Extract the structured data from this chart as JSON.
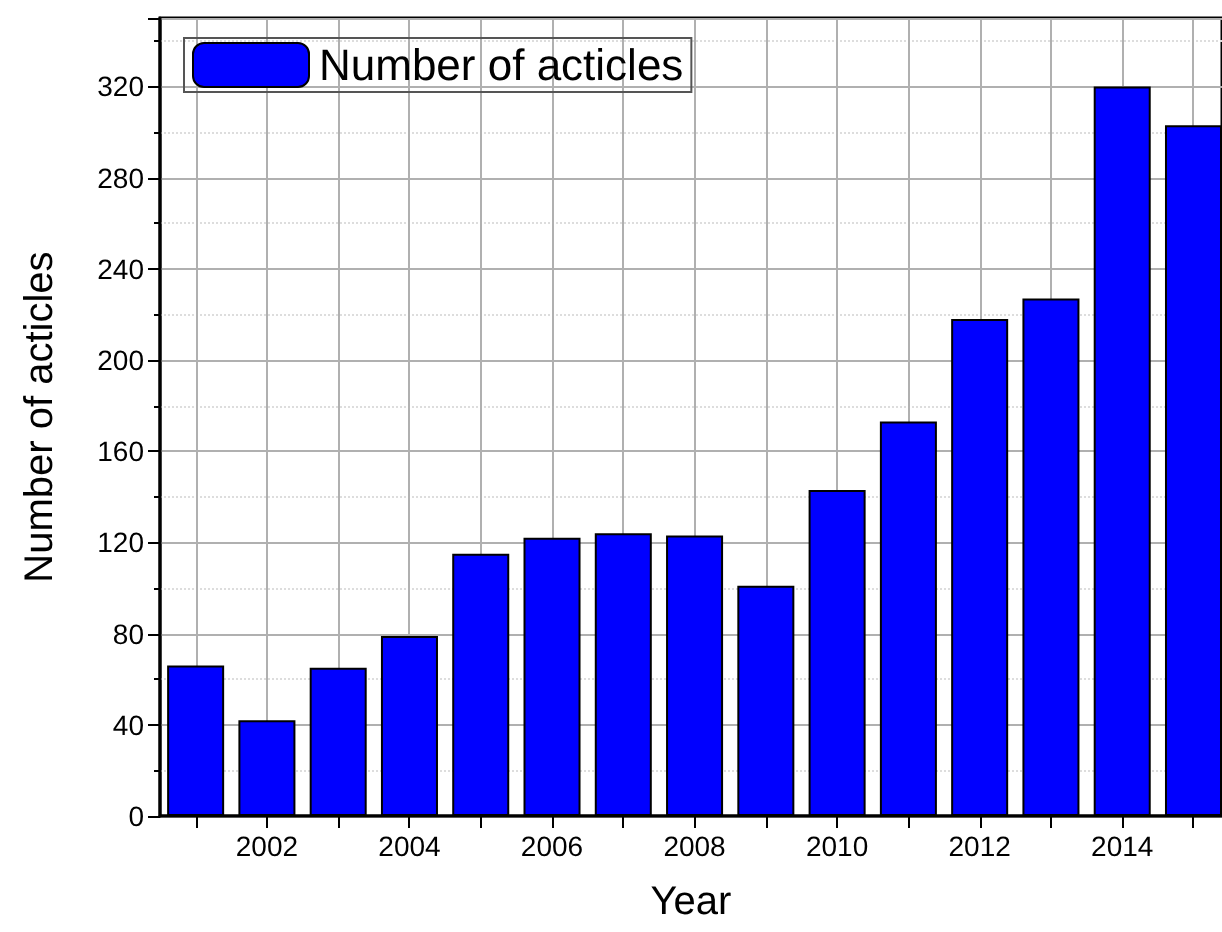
{
  "chart_data": {
    "type": "bar",
    "xlabel": "Year",
    "ylabel": "Number of acticles",
    "x": [
      2001,
      2002,
      2003,
      2004,
      2005,
      2006,
      2007,
      2008,
      2009,
      2010,
      2011,
      2012,
      2013,
      2014,
      2015
    ],
    "series": [
      {
        "name": "Number of acticles",
        "color": "#0000ff",
        "values": [
          66,
          42,
          65,
          79,
          115,
          122,
          124,
          123,
          101,
          143,
          173,
          218,
          227,
          320,
          303
        ]
      }
    ],
    "xlim": [
      2000.5,
      2015.4
    ],
    "xticks": [
      {
        "value": 2001,
        "label": null
      },
      2002,
      {
        "value": 2003,
        "label": null
      },
      2004,
      {
        "value": 2005,
        "label": null
      },
      2006,
      {
        "value": 2007,
        "label": null
      },
      2008,
      {
        "value": 2009,
        "label": null
      },
      2010,
      {
        "value": 2011,
        "label": null
      },
      2012,
      {
        "value": 2013,
        "label": null
      },
      2014,
      {
        "value": 2015,
        "label": null
      }
    ],
    "ylim": [
      0,
      350
    ],
    "yticks": [
      0,
      40,
      80,
      120,
      160,
      200,
      240,
      280,
      320
    ],
    "grid": true,
    "legend": "top left"
  }
}
